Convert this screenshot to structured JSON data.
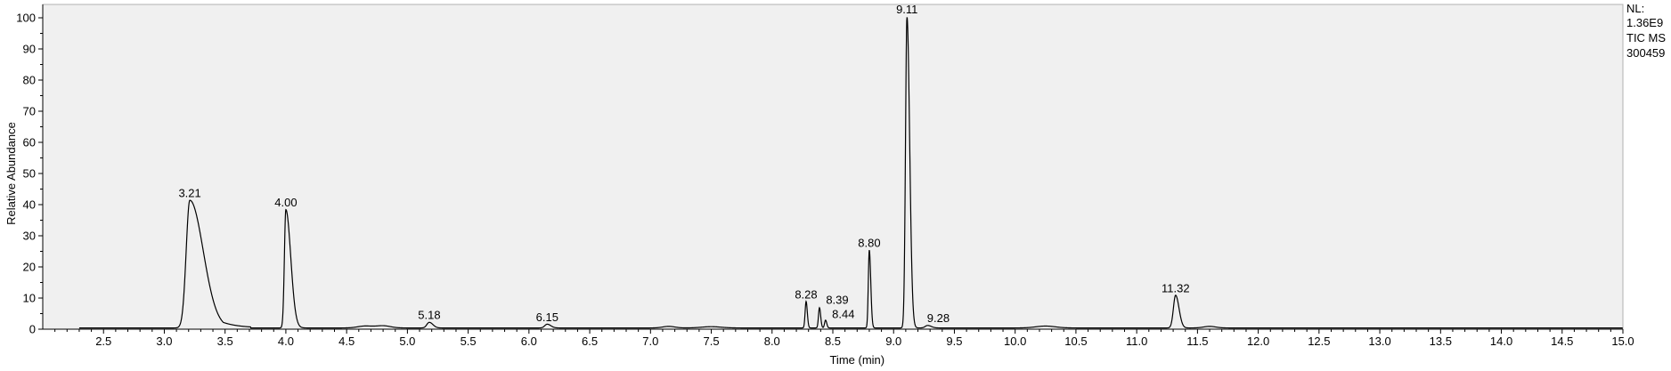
{
  "chart_data": {
    "type": "line",
    "title": "",
    "xlabel": "Time (min)",
    "ylabel": "Relative Abundance",
    "xlim": [
      2.0,
      15.0
    ],
    "ylim": [
      0,
      100
    ],
    "xticks": [
      "2.5",
      "3.0",
      "3.5",
      "4.0",
      "4.5",
      "5.0",
      "5.5",
      "6.0",
      "6.5",
      "7.0",
      "7.5",
      "8.0",
      "8.5",
      "9.0",
      "9.5",
      "10.0",
      "10.5",
      "11.0",
      "11.5",
      "12.0",
      "12.5",
      "13.0",
      "13.5",
      "14.0",
      "14.5",
      "15.0"
    ],
    "yticks": [
      "0",
      "10",
      "20",
      "30",
      "40",
      "50",
      "60",
      "70",
      "80",
      "90",
      "100"
    ],
    "grid": false,
    "plot_background": "#f0f0f0",
    "trace_color": "#000000",
    "baseline_start": 2.3,
    "baseline_level": 0.4,
    "peaks": [
      {
        "label": "3.21",
        "rt": 3.21,
        "height": 41,
        "width_left": 0.03,
        "width_right": 0.11
      },
      {
        "label": "4.00",
        "rt": 4.0,
        "height": 38,
        "width_left": 0.012,
        "width_right": 0.04
      },
      {
        "label": "5.18",
        "rt": 5.18,
        "height": 1.8,
        "width_left": 0.02,
        "width_right": 0.03
      },
      {
        "label": "6.15",
        "rt": 6.15,
        "height": 1.2,
        "width_left": 0.02,
        "width_right": 0.03
      },
      {
        "label": "8.28",
        "rt": 8.28,
        "height": 8.5,
        "width_left": 0.008,
        "width_right": 0.01
      },
      {
        "label": "8.39",
        "rt": 8.39,
        "height": 6.5,
        "width_left": 0.008,
        "width_right": 0.01
      },
      {
        "label": "8.44",
        "rt": 8.44,
        "height": 2.5,
        "width_left": 0.008,
        "width_right": 0.01
      },
      {
        "label": "8.80",
        "rt": 8.8,
        "height": 25,
        "width_left": 0.008,
        "width_right": 0.012
      },
      {
        "label": "9.11",
        "rt": 9.11,
        "height": 100,
        "width_left": 0.012,
        "width_right": 0.022
      },
      {
        "label": "9.28",
        "rt": 9.28,
        "height": 0.8,
        "width_left": 0.02,
        "width_right": 0.03
      },
      {
        "label": "11.32",
        "rt": 11.32,
        "height": 10.5,
        "width_left": 0.018,
        "width_right": 0.028
      }
    ],
    "minor_bumps": [
      {
        "rt": 4.65,
        "height": 0.6,
        "width": 0.06
      },
      {
        "rt": 4.8,
        "height": 0.7,
        "width": 0.06
      },
      {
        "rt": 7.15,
        "height": 0.5,
        "width": 0.05
      },
      {
        "rt": 7.5,
        "height": 0.4,
        "width": 0.08
      },
      {
        "rt": 10.25,
        "height": 0.6,
        "width": 0.08
      },
      {
        "rt": 11.6,
        "height": 0.5,
        "width": 0.05
      }
    ],
    "info": {
      "nl_label": "NL:",
      "nl_value": "1.36E9",
      "scan_type": "TIC  MS",
      "file_name": "300459"
    }
  }
}
